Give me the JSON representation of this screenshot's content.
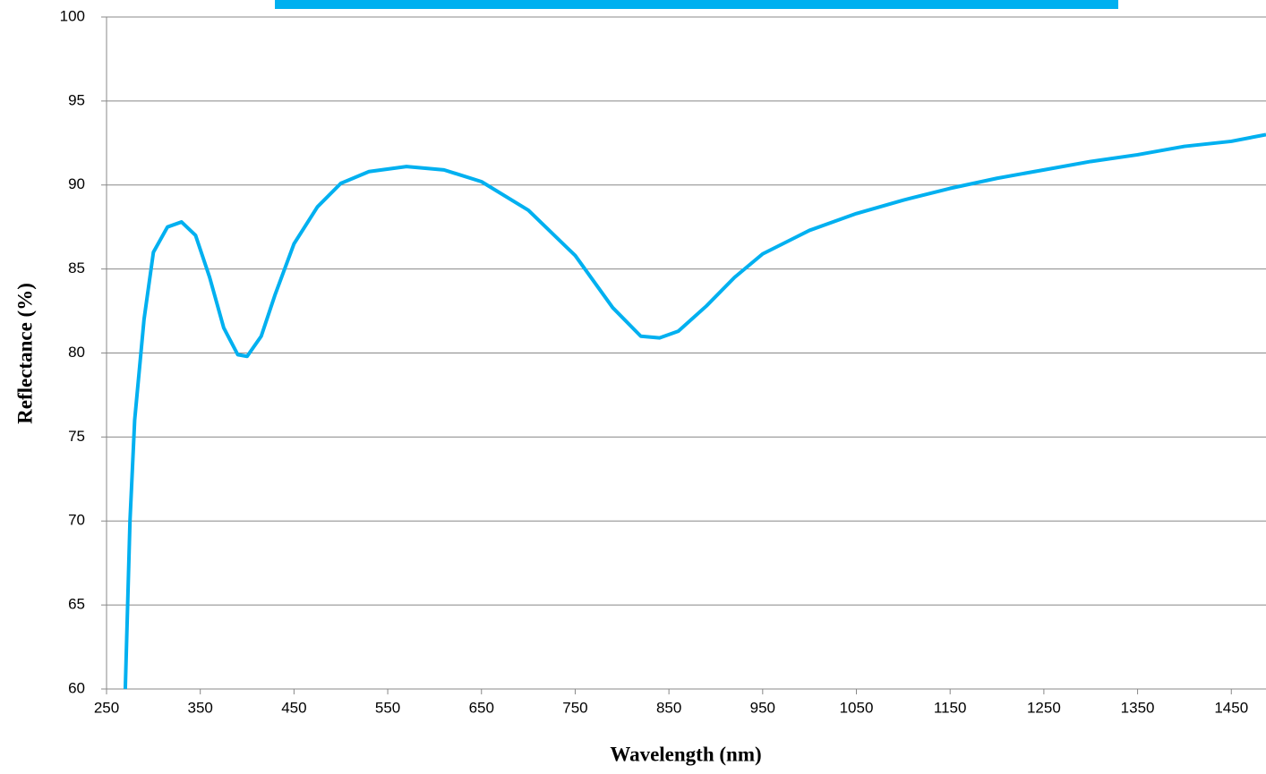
{
  "chart_data": {
    "type": "line",
    "x_label": "Wavelength (nm)",
    "y_label": "Reflectance (%)",
    "x": [
      270,
      275,
      280,
      290,
      300,
      315,
      330,
      345,
      360,
      375,
      390,
      400,
      415,
      430,
      450,
      475,
      500,
      530,
      570,
      610,
      650,
      700,
      750,
      790,
      820,
      840,
      860,
      890,
      920,
      950,
      1000,
      1050,
      1100,
      1150,
      1200,
      1250,
      1300,
      1350,
      1400,
      1450,
      1487
    ],
    "series": [
      {
        "color": "#00b0f0",
        "values": [
          60,
          70,
          76,
          82,
          86,
          87.5,
          87.8,
          87,
          84.5,
          81.5,
          79.9,
          79.8,
          81,
          83.5,
          86.5,
          88.7,
          90.1,
          90.8,
          91.1,
          90.9,
          90.2,
          88.5,
          85.8,
          82.7,
          81,
          80.9,
          81.3,
          82.8,
          84.5,
          85.9,
          87.3,
          88.3,
          89.1,
          89.8,
          90.4,
          90.9,
          91.4,
          91.8,
          92.3,
          92.6,
          93
        ]
      }
    ],
    "xlim": [
      250,
      1487
    ],
    "ylim": [
      60,
      100
    ],
    "xticks": [
      250,
      350,
      450,
      550,
      650,
      750,
      850,
      950,
      1050,
      1150,
      1250,
      1350,
      1450
    ],
    "yticks": [
      60,
      65,
      70,
      75,
      80,
      85,
      90,
      95,
      100
    ],
    "grid": true
  }
}
